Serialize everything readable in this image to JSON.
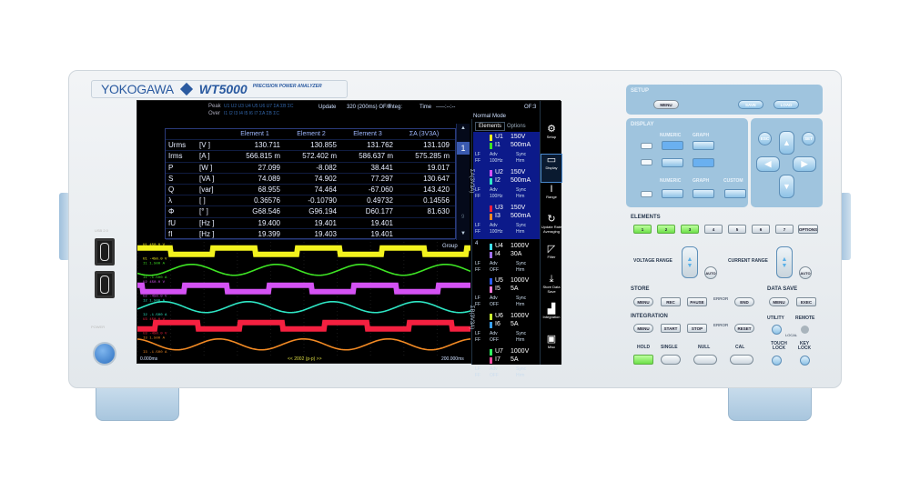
{
  "device": {
    "brand": "YOKOGAWA",
    "model": "WT5000",
    "subtitle": "PRECISION POWER ANALYZER",
    "usb_label": "USB 2.0",
    "power_label": "POWER"
  },
  "screen": {
    "status": {
      "peak_label": "Peak",
      "peak_values": "U1 U2 U3 U4 U5 U6 U7 ΣA ΣB ΣC",
      "over_label": "Over",
      "over_values": "I1 I2 I3 I4 I5 I6 I7 ΣA ΣB ΣC",
      "update_label": "Update",
      "update_value": "320 (200ms) OF/F",
      "integ_label": "Integ:",
      "time_label": "Time",
      "time_value": "-----:--:--",
      "mode": "Normal Mode",
      "of": "OF:3"
    },
    "table": {
      "headers": [
        "",
        "",
        "Element 1",
        "Element 2",
        "Element 3",
        "ΣA (3V3A)"
      ],
      "rows": [
        [
          "Urms",
          "[V  ]",
          "130.711",
          "130.855",
          "131.762",
          "131.109"
        ],
        [
          "Irms",
          "[A  ]",
          "566.815 m",
          "572.402 m",
          "586.637 m",
          "575.285 m"
        ],
        [
          "P",
          "[W  ]",
          "27.099",
          "-8.082",
          "38.441",
          "19.017"
        ],
        [
          "S",
          "[VA ]",
          "74.089",
          "74.902",
          "77.297",
          "130.647"
        ],
        [
          "Q",
          "[var]",
          "68.955",
          "74.464",
          "-67.060",
          "143.420"
        ],
        [
          "λ",
          "[   ]",
          "0.36576",
          "-0.10790",
          "0.49732",
          "0.14556"
        ],
        [
          "Φ",
          "[°  ]",
          "G68.546",
          "G96.194",
          "D60.177",
          "81.630"
        ],
        [
          "fU",
          "[Hz ]",
          "19.400",
          "19.401",
          "19.401",
          ""
        ],
        [
          "fI",
          "[Hz ]",
          "19.399",
          "19.403",
          "19.401",
          ""
        ]
      ],
      "page": "1",
      "last_page": "9"
    },
    "waveforms": {
      "group_label": "Group",
      "time_start": "0.000ms",
      "time_end": "200.000ms",
      "trigger": "<< 2002 (p-p) >>",
      "channels": [
        {
          "name": "U1",
          "type": "voltage",
          "top": "U1  450.0 V",
          "bottom": "U1  -450.0 V",
          "color": "#f2f21e"
        },
        {
          "name": "I1",
          "type": "current",
          "top": "I1  1.500 A",
          "bottom": "I1  -1.500 A",
          "color": "#3ee424"
        },
        {
          "name": "U2",
          "type": "voltage",
          "top": "U2  450.0 V",
          "bottom": "U2  -450.0 V",
          "color": "#d452f4"
        },
        {
          "name": "I2",
          "type": "current",
          "top": "I2  1.500 A",
          "bottom": "I2  -1.500 A",
          "color": "#2ee6c4"
        },
        {
          "name": "U3",
          "type": "voltage",
          "top": "U3  450.0 V",
          "bottom": "U3  -450.0 V",
          "color": "#f42040"
        },
        {
          "name": "I3",
          "type": "current",
          "top": "I3  1.500 A",
          "bottom": "I3  -1.500 A",
          "color": "#f28a24"
        }
      ]
    },
    "elements": {
      "tabs": [
        "Elements",
        "Options"
      ],
      "group_a": "ΣA(3V3A)",
      "group_b": "ΣB(3V3A)",
      "single_label": "4",
      "items": [
        {
          "u": "U1",
          "ur": "150V",
          "i": "I1",
          "ir": "500mA",
          "lf": "LF",
          "adv": "Adv",
          "ff": "FF",
          "ffv": "100Hz",
          "sync": "Sync",
          "hrm": "Hrm",
          "uc": "#f2f21e",
          "ic": "#3ee424"
        },
        {
          "u": "U2",
          "ur": "150V",
          "i": "I2",
          "ir": "500mA",
          "lf": "LF",
          "adv": "Adv",
          "ff": "FF",
          "ffv": "100Hz",
          "sync": "Sync",
          "hrm": "Hrm",
          "uc": "#d452f4",
          "ic": "#2ee6c4"
        },
        {
          "u": "U3",
          "ur": "150V",
          "i": "I3",
          "ir": "500mA",
          "lf": "LF",
          "adv": "Adv",
          "ff": "FF",
          "ffv": "100Hz",
          "sync": "Sync",
          "hrm": "Hrm",
          "uc": "#f42040",
          "ic": "#f28a24"
        },
        {
          "u": "U4",
          "ur": "1000V",
          "i": "I4",
          "ir": "30A",
          "lf": "LF",
          "adv": "Adv",
          "ff": "FF",
          "ffv": "OFF",
          "sync": "Sync",
          "hrm": "Hrm",
          "uc": "#40e0f0",
          "ic": "#a070f0"
        },
        {
          "u": "U5",
          "ur": "1000V",
          "i": "I5",
          "ir": "5A",
          "lf": "LF",
          "adv": "Adv",
          "ff": "FF",
          "ffv": "OFF",
          "sync": "Sync",
          "hrm": "Hrm",
          "uc": "#2a5cf0",
          "ic": "#f07ad8"
        },
        {
          "u": "U6",
          "ur": "1000V",
          "i": "I6",
          "ir": "5A",
          "lf": "LF",
          "adv": "Adv",
          "ff": "FF",
          "ffv": "OFF",
          "sync": "Sync",
          "hrm": "Hrm",
          "uc": "#c8f030",
          "ic": "#3aa0f0"
        },
        {
          "u": "U7",
          "ur": "1000V",
          "i": "I7",
          "ir": "5A",
          "lf": "LF",
          "adv": "Adv",
          "ff": "FF",
          "ffv": "OFF",
          "sync": "Sync",
          "hrm": "Hrm",
          "uc": "#30f060",
          "ic": "#f04aa0"
        }
      ]
    },
    "menu": [
      {
        "label": "Setup",
        "icon": "gear-icon",
        "glyph": "⚙"
      },
      {
        "label": "Display",
        "icon": "display-icon",
        "glyph": "▭",
        "selected": true
      },
      {
        "label": "Range",
        "icon": "range-icon",
        "glyph": "I"
      },
      {
        "label": "Update Rate Averaging",
        "icon": "refresh-icon",
        "glyph": "↻"
      },
      {
        "label": "Filter",
        "icon": "filter-icon",
        "glyph": "◸"
      },
      {
        "label": "Store Data Save",
        "icon": "store-icon",
        "glyph": "⤓"
      },
      {
        "label": "Integration",
        "icon": "integration-icon",
        "glyph": "▟"
      },
      {
        "label": "Misc",
        "icon": "toolbox-icon",
        "glyph": "▣"
      }
    ],
    "help_glyph": "?"
  },
  "panel": {
    "setup": {
      "title": "SETUP",
      "menu": "MENU",
      "save": "SAVE",
      "load": "LOAD"
    },
    "display": {
      "title": "DISPLAY",
      "numeric": "NUMERIC",
      "graph": "GRAPH",
      "numeric2": "NUMERIC",
      "graph2": "GRAPH",
      "custom": "CUSTOM"
    },
    "nav": {
      "esc": "ESC",
      "set": "SET"
    },
    "elements": {
      "title": "ELEMENTS",
      "buttons": [
        "1",
        "2",
        "3",
        "4",
        "5",
        "6",
        "7"
      ],
      "options": "OPTIONS",
      "active": [
        true,
        true,
        true,
        false,
        false,
        false,
        false
      ]
    },
    "voltage_range": "VOLTAGE RANGE",
    "current_range": "CURRENT RANGE",
    "auto": "AUTO",
    "store": {
      "title": "STORE",
      "menu": "MENU",
      "rec": "REC",
      "pause": "PAUSE",
      "error": "ERROR",
      "end": "END"
    },
    "data_save": {
      "title": "DATA SAVE",
      "menu": "MENU",
      "exec": "EXEC"
    },
    "integration": {
      "title": "INTEGRATION",
      "menu": "MENU",
      "start": "START",
      "stop": "STOP",
      "error": "ERROR",
      "reset": "RESET"
    },
    "utility": "UTILITY",
    "remote": "REMOTE",
    "local": "LOCAL",
    "hold": "HOLD",
    "single": "SINGLE",
    "null": "NULL",
    "cal": "CAL",
    "touch_lock": "TOUCH LOCK",
    "key_lock": "KEY LOCK"
  }
}
